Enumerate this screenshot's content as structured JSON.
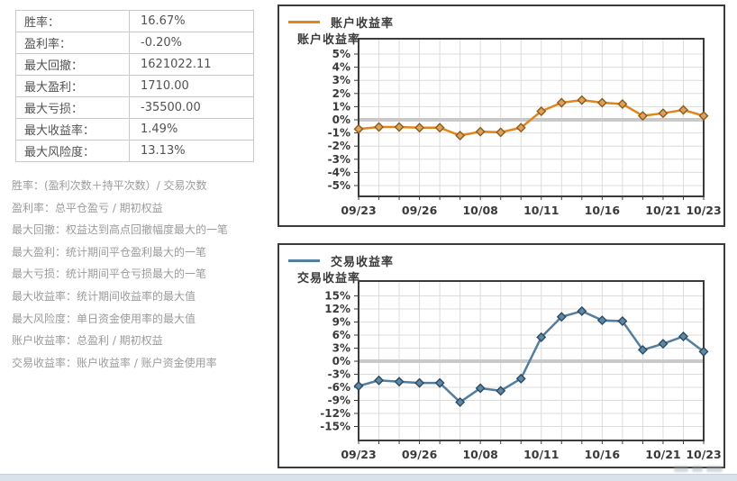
{
  "stats_table": {
    "rows": [
      {
        "label": "胜率：",
        "value": "16.67%"
      },
      {
        "label": "盈利率：",
        "value": "-0.20%"
      },
      {
        "label": "最大回撤：",
        "value": "1621022.11"
      },
      {
        "label": "最大盈利：",
        "value": "1710.00"
      },
      {
        "label": "最大亏损：",
        "value": "-35500.00"
      },
      {
        "label": "最大收益率：",
        "value": "1.49%"
      },
      {
        "label": "最大风险度：",
        "value": "13.13%"
      }
    ]
  },
  "notes": [
    "胜率：(盈利次数＋持平次数）/ 交易次数",
    "盈利率：总平仓盈亏 / 期初权益",
    "最大回撤：权益达到高点回撤幅度最大的一笔",
    "最大盈利：统计期间平仓盈利最大的一笔",
    "最大亏损：统计期间平仓亏损最大的一笔",
    "最大收益率：统计期间收益率的最大值",
    "最大风险度：单日资金使用率的最大值",
    "账户收益率：总盈利 / 期初权益",
    "交易收益率：账户收益率 / 账户资金使用率"
  ],
  "colors": {
    "account_line": "#E2861B",
    "account_marker_fill": "#D9A35F",
    "account_marker_stroke": "#8F5A1A",
    "trade_line": "#537E9F",
    "trade_marker_fill": "#5E88A6",
    "trade_marker_stroke": "#2B4A61",
    "grid": "#dcdcdc",
    "zero_line": "#c9c9c9",
    "plot_border": "#3b3b3b",
    "axis_text": "#3a3a3a"
  },
  "chart_data": [
    {
      "type": "line",
      "title": "账户收益率",
      "ylabel": "账户收益率",
      "legend_position": "top-left",
      "grid": true,
      "zero_line": true,
      "ytick_suffix": "%",
      "yticks": [
        5,
        4,
        3,
        2,
        1,
        0,
        -1,
        -2,
        -3,
        -4,
        -5
      ],
      "ylim": [
        -5.9,
        6.2
      ],
      "x_ticks": [
        {
          "i": 0,
          "label": "09/23"
        },
        {
          "i": 3,
          "label": "09/26"
        },
        {
          "i": 6,
          "label": "10/08"
        },
        {
          "i": 9,
          "label": "10/11"
        },
        {
          "i": 12,
          "label": "10/16"
        },
        {
          "i": 15,
          "label": "10/21"
        },
        {
          "i": 17,
          "label": "10/23"
        }
      ],
      "series": [
        {
          "name": "账户收益率",
          "color": "#E2861B",
          "marker": "diamond",
          "marker_fill": "#D9A35F",
          "marker_stroke": "#8F5A1A",
          "values": [
            -0.7,
            -0.55,
            -0.55,
            -0.6,
            -0.6,
            -1.2,
            -0.9,
            -0.95,
            -0.6,
            0.65,
            1.3,
            1.5,
            1.3,
            1.2,
            0.3,
            0.5,
            0.75,
            0.3
          ]
        }
      ]
    },
    {
      "type": "line",
      "title": "交易收益率",
      "ylabel": "交易收益率",
      "legend_position": "top-left",
      "grid": true,
      "zero_line": true,
      "ytick_suffix": "%",
      "yticks": [
        15,
        12,
        9,
        6,
        3,
        0,
        -3,
        -6,
        -9,
        -12,
        -15
      ],
      "ylim": [
        -18.2,
        18.4
      ],
      "x_ticks": [
        {
          "i": 0,
          "label": "09/23"
        },
        {
          "i": 3,
          "label": "09/26"
        },
        {
          "i": 6,
          "label": "10/08"
        },
        {
          "i": 9,
          "label": "10/11"
        },
        {
          "i": 12,
          "label": "10/16"
        },
        {
          "i": 15,
          "label": "10/21"
        },
        {
          "i": 17,
          "label": "10/23"
        }
      ],
      "series": [
        {
          "name": "交易收益率",
          "color": "#537E9F",
          "marker": "diamond",
          "marker_fill": "#5E88A6",
          "marker_stroke": "#2B4A61",
          "values": [
            -5.7,
            -4.4,
            -4.7,
            -5.0,
            -5.0,
            -9.4,
            -6.2,
            -6.8,
            -4.0,
            5.5,
            10.2,
            11.5,
            9.4,
            9.2,
            2.6,
            4.0,
            5.7,
            2.2
          ]
        }
      ]
    }
  ]
}
